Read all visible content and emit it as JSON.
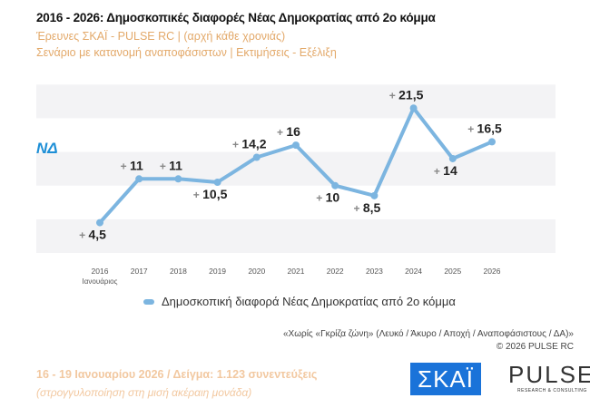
{
  "title": "2016 - 2026: Δημοσκοπικές διαφορές Νέας Δημοκρατίας από 2ο κόμμα",
  "subtitle1": "Έρευνες ΣΚΑΪ - PULSE RC  |  (αρχή κάθε χρονιάς)",
  "subtitle2": "Σενάριο με κατανομή αναποφάσιστων  |  Εκτιμήσεις - Εξέλιξη",
  "party_logo": "ΝΔ",
  "note1": "«Χωρίς «Γκρίζα ζώνη»  (Λευκό / Άκυρο / Αποχή / Αναποφάσιστους / ΔΑ)»",
  "note2": "©  2026  PULSE RC",
  "footer1": "16 - 19 Ιανουαρίου 2026  /  Δείγμα:  1.123 συνεντεύξεις",
  "footer2": "(στρογγυλοποίηση στη μισή ακέραιη μονάδα)",
  "logos": {
    "skai": "ΣΚΑΪ",
    "pulse": "PULSE",
    "pulse_sub": "RESEARCH & CONSULTING"
  },
  "chart_data": {
    "type": "line",
    "categories": [
      "2016",
      "2017",
      "2018",
      "2019",
      "2020",
      "2021",
      "2022",
      "2023",
      "2024",
      "2025",
      "2026"
    ],
    "first_category_sublabel": "Ιανουάριος",
    "series": [
      {
        "name": "Δημοσκοπική διαφορά Νέας Δημοκρατίας από 2ο κόμμα",
        "values": [
          4.5,
          11,
          11,
          10.5,
          14.2,
          16,
          10,
          8.5,
          21.5,
          14,
          16.5
        ],
        "color": "#7cb5e0"
      }
    ],
    "data_labels": [
      "4,5",
      "11",
      "11",
      "10,5",
      "14,2",
      "16",
      "10",
      "8,5",
      "21,5",
      "14",
      "16,5"
    ],
    "label_prefix": "+",
    "label_positions": [
      "below",
      "above",
      "above",
      "below",
      "above",
      "above",
      "below",
      "below",
      "above",
      "below",
      "above"
    ],
    "ylim": [
      0,
      25
    ],
    "grid": "alternating horizontal bands",
    "legend": "bottom"
  }
}
